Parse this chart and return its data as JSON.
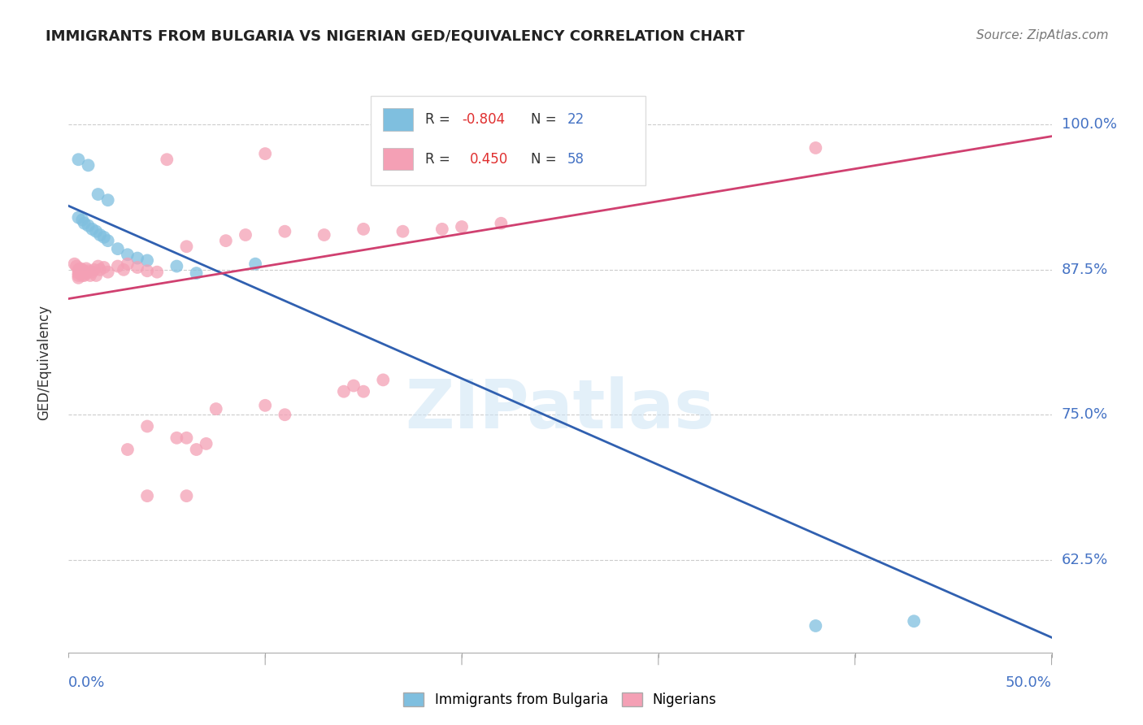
{
  "title": "IMMIGRANTS FROM BULGARIA VS NIGERIAN GED/EQUIVALENCY CORRELATION CHART",
  "source": "Source: ZipAtlas.com",
  "ylabel": "GED/Equivalency",
  "ytick_labels": [
    "100.0%",
    "87.5%",
    "75.0%",
    "62.5%"
  ],
  "ytick_values": [
    1.0,
    0.875,
    0.75,
    0.625
  ],
  "xlim": [
    0.0,
    0.5
  ],
  "ylim": [
    0.545,
    1.045
  ],
  "blue_color": "#7fbfdf",
  "pink_color": "#f4a0b5",
  "blue_line_color": "#3060b0",
  "pink_line_color": "#d04070",
  "blue_dots": [
    [
      0.005,
      0.97
    ],
    [
      0.01,
      0.965
    ],
    [
      0.015,
      0.94
    ],
    [
      0.02,
      0.935
    ],
    [
      0.005,
      0.92
    ],
    [
      0.007,
      0.918
    ],
    [
      0.008,
      0.915
    ],
    [
      0.01,
      0.913
    ],
    [
      0.012,
      0.91
    ],
    [
      0.014,
      0.908
    ],
    [
      0.016,
      0.905
    ],
    [
      0.018,
      0.903
    ],
    [
      0.02,
      0.9
    ],
    [
      0.025,
      0.893
    ],
    [
      0.03,
      0.888
    ],
    [
      0.035,
      0.885
    ],
    [
      0.04,
      0.883
    ],
    [
      0.055,
      0.878
    ],
    [
      0.065,
      0.872
    ],
    [
      0.095,
      0.88
    ],
    [
      0.38,
      0.568
    ],
    [
      0.43,
      0.572
    ]
  ],
  "pink_dots": [
    [
      0.003,
      0.88
    ],
    [
      0.004,
      0.878
    ],
    [
      0.005,
      0.875
    ],
    [
      0.005,
      0.872
    ],
    [
      0.005,
      0.87
    ],
    [
      0.005,
      0.868
    ],
    [
      0.006,
      0.876
    ],
    [
      0.006,
      0.872
    ],
    [
      0.007,
      0.875
    ],
    [
      0.007,
      0.872
    ],
    [
      0.007,
      0.87
    ],
    [
      0.008,
      0.873
    ],
    [
      0.008,
      0.87
    ],
    [
      0.009,
      0.876
    ],
    [
      0.009,
      0.872
    ],
    [
      0.01,
      0.874
    ],
    [
      0.011,
      0.87
    ],
    [
      0.012,
      0.873
    ],
    [
      0.013,
      0.875
    ],
    [
      0.014,
      0.87
    ],
    [
      0.015,
      0.878
    ],
    [
      0.016,
      0.875
    ],
    [
      0.018,
      0.877
    ],
    [
      0.02,
      0.873
    ],
    [
      0.025,
      0.878
    ],
    [
      0.028,
      0.875
    ],
    [
      0.03,
      0.88
    ],
    [
      0.035,
      0.877
    ],
    [
      0.04,
      0.874
    ],
    [
      0.045,
      0.873
    ],
    [
      0.06,
      0.895
    ],
    [
      0.08,
      0.9
    ],
    [
      0.09,
      0.905
    ],
    [
      0.11,
      0.908
    ],
    [
      0.13,
      0.905
    ],
    [
      0.15,
      0.91
    ],
    [
      0.17,
      0.908
    ],
    [
      0.19,
      0.91
    ],
    [
      0.2,
      0.912
    ],
    [
      0.22,
      0.915
    ],
    [
      0.05,
      0.97
    ],
    [
      0.1,
      0.975
    ],
    [
      0.38,
      0.98
    ],
    [
      0.04,
      0.74
    ],
    [
      0.055,
      0.73
    ],
    [
      0.065,
      0.72
    ],
    [
      0.075,
      0.755
    ],
    [
      0.1,
      0.758
    ],
    [
      0.11,
      0.75
    ],
    [
      0.14,
      0.77
    ],
    [
      0.145,
      0.775
    ],
    [
      0.15,
      0.77
    ],
    [
      0.16,
      0.78
    ],
    [
      0.03,
      0.72
    ],
    [
      0.04,
      0.68
    ],
    [
      0.06,
      0.73
    ],
    [
      0.07,
      0.725
    ],
    [
      0.06,
      0.68
    ]
  ],
  "blue_trend_x": [
    0.0,
    0.5
  ],
  "blue_trend_y": [
    0.93,
    0.558
  ],
  "pink_trend_x": [
    0.0,
    0.5
  ],
  "pink_trend_y": [
    0.85,
    0.99
  ],
  "watermark": "ZIPatlas",
  "title_fontsize": 13,
  "source_fontsize": 11
}
